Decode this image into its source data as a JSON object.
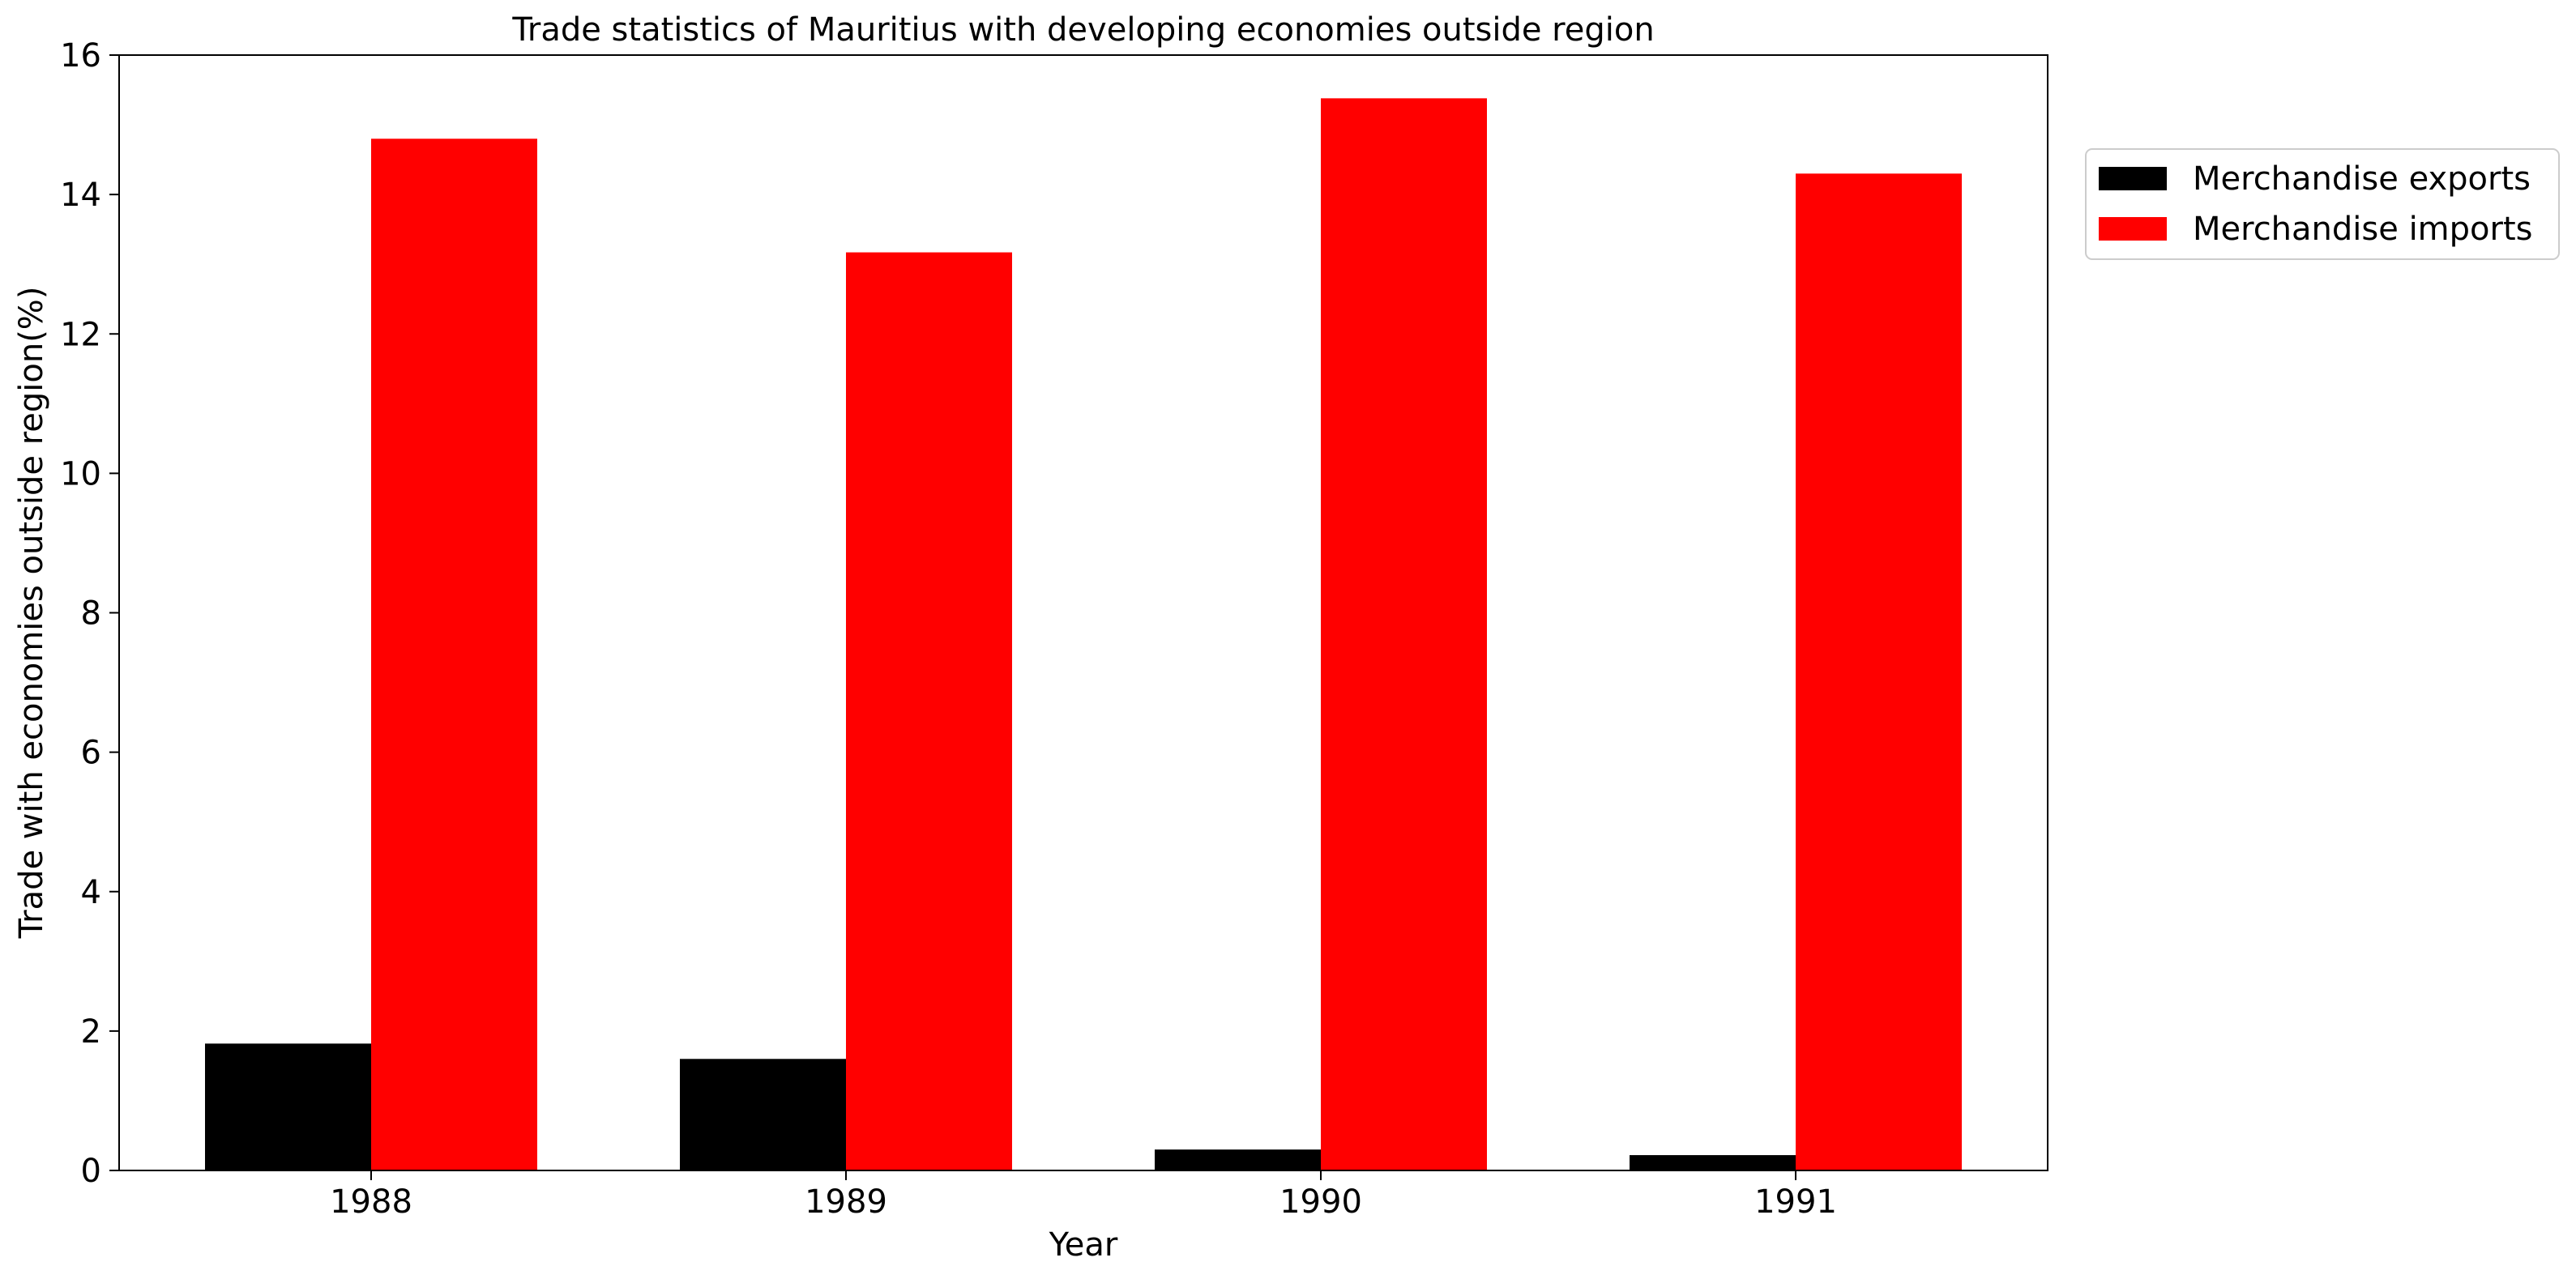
{
  "chart_data": {
    "type": "bar",
    "title": "Trade statistics of Mauritius with developing economies outside region",
    "xlabel": "Year",
    "ylabel": "Trade with economies outside region(%)",
    "categories": [
      "1988",
      "1989",
      "1990",
      "1991"
    ],
    "series": [
      {
        "name": "Merchandise exports",
        "values": [
          1.82,
          1.6,
          0.3,
          0.22
        ],
        "color": "#000000"
      },
      {
        "name": "Merchandise imports",
        "values": [
          14.8,
          13.17,
          15.38,
          14.3
        ],
        "color": "#ff0000"
      }
    ],
    "ylim": [
      0,
      16
    ],
    "yticks": [
      "0",
      "2",
      "4",
      "6",
      "8",
      "10",
      "12",
      "14",
      "16"
    ],
    "grid": false,
    "legend_position": "outside-top-right"
  }
}
